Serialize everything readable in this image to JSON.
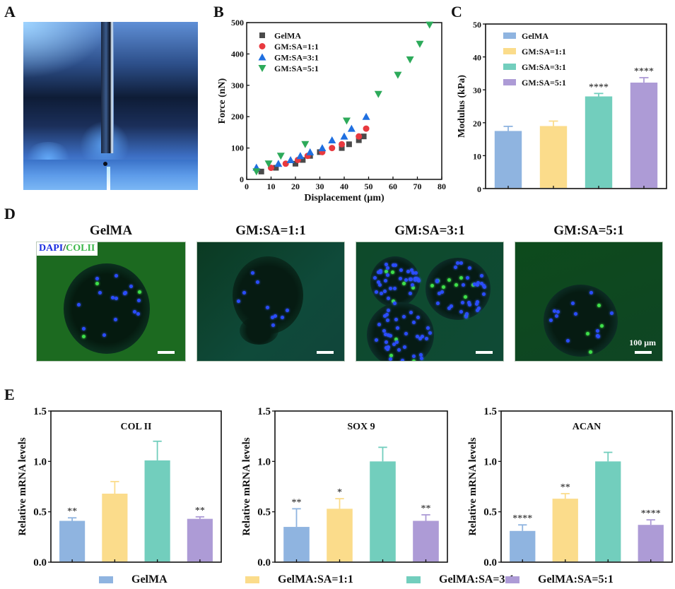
{
  "panels": {
    "A": {
      "letter": "A"
    },
    "B": {
      "letter": "B"
    },
    "C": {
      "letter": "C"
    },
    "D": {
      "letter": "D",
      "titles": [
        "GelMA",
        "GM:SA=1:1",
        "GM:SA=3:1",
        "GM:SA=5:1"
      ],
      "stain_label_blue": "DAPI",
      "stain_label_sep": "/",
      "stain_label_green": "COLII",
      "scale_bar_label": "100 μm"
    },
    "E": {
      "letter": "E"
    }
  },
  "colors": {
    "gelma": "#8fb4e0",
    "ratio_1_1": "#fbdc8b",
    "ratio_3_1": "#72cebd",
    "ratio_5_1": "#ad9bd6",
    "scatter_gelma": "#4a4a4a",
    "scatter_1_1": "#e8393f",
    "scatter_3_1": "#1f6fe0",
    "scatter_5_1": "#2daa5a"
  },
  "legend_E": [
    "GelMA",
    "GelMA:SA=1:1",
    "GelMA:SA=3:1",
    "GelMA:SA=5:1"
  ],
  "chart_data": [
    {
      "id": "B",
      "type": "scatter",
      "title": "",
      "xlabel": "Displacement (μm)",
      "ylabel": "Force (nN)",
      "xlim": [
        0,
        80
      ],
      "ylim": [
        0,
        500
      ],
      "xticks": [
        0,
        10,
        20,
        30,
        40,
        50,
        60,
        70,
        80
      ],
      "yticks": [
        0,
        100,
        200,
        300,
        400,
        500
      ],
      "legend_position": "top-left",
      "series": [
        {
          "name": "GelMA",
          "marker": "square",
          "x": [
            6,
            12,
            20,
            23,
            26,
            30,
            39,
            42,
            46,
            48
          ],
          "y": [
            25,
            37,
            50,
            62,
            75,
            87,
            100,
            112,
            125,
            137
          ]
        },
        {
          "name": "GM:SA=1:1",
          "marker": "circle",
          "x": [
            10,
            16,
            21,
            25,
            31,
            35,
            39,
            46,
            49
          ],
          "y": [
            37,
            50,
            62,
            75,
            87,
            100,
            112,
            137,
            162
          ]
        },
        {
          "name": "GM:SA=3:1",
          "marker": "triangle-up",
          "x": [
            4,
            13,
            18,
            22,
            26,
            31,
            35,
            40,
            43,
            49
          ],
          "y": [
            38,
            50,
            62,
            75,
            87,
            100,
            125,
            137,
            162,
            200
          ]
        },
        {
          "name": "GM:SA=5:1",
          "marker": "triangle-down",
          "x": [
            4,
            9,
            14,
            24,
            41,
            54,
            62,
            67,
            71,
            75
          ],
          "y": [
            25,
            50,
            75,
            112,
            187,
            272,
            333,
            382,
            432,
            493
          ]
        }
      ]
    },
    {
      "id": "C",
      "type": "bar",
      "title": "",
      "xlabel": "",
      "ylabel": "Modulus (kPa)",
      "ylim": [
        0,
        50
      ],
      "yticks": [
        0,
        10,
        20,
        30,
        40,
        50
      ],
      "legend_position": "top-left",
      "categories": [
        "GelMA",
        "GM:SA=1:1",
        "GM:SA=3:1",
        "GM:SA=5:1"
      ],
      "values": [
        17.5,
        19.0,
        28.0,
        32.2
      ],
      "errors": [
        1.4,
        1.5,
        0.9,
        1.5
      ],
      "significance": [
        "",
        "",
        "****",
        "****"
      ]
    },
    {
      "id": "E1",
      "type": "bar",
      "title": "COL II",
      "ylabel": "Relative mRNA levels",
      "ylim": [
        0,
        1.5
      ],
      "yticks": [
        "0.0",
        "0.5",
        "1.0",
        "1.5"
      ],
      "categories": [
        "GelMA",
        "GelMA:SA=1:1",
        "GelMA:SA=3:1",
        "GelMA:SA=5:1"
      ],
      "values": [
        0.41,
        0.68,
        1.01,
        0.43
      ],
      "errors": [
        0.03,
        0.12,
        0.19,
        0.02
      ],
      "significance": [
        "**",
        "",
        "",
        "**"
      ]
    },
    {
      "id": "E2",
      "type": "bar",
      "title": "SOX 9",
      "ylabel": "Relative mRNA levels",
      "ylim": [
        0,
        1.5
      ],
      "yticks": [
        "0.0",
        "0.5",
        "1.0",
        "1.5"
      ],
      "categories": [
        "GelMA",
        "GelMA:SA=1:1",
        "GelMA:SA=3:1",
        "GelMA:SA=5:1"
      ],
      "values": [
        0.35,
        0.53,
        1.0,
        0.41
      ],
      "errors": [
        0.18,
        0.1,
        0.14,
        0.06
      ],
      "significance": [
        "**",
        "*",
        "",
        "**"
      ]
    },
    {
      "id": "E3",
      "type": "bar",
      "title": "ACAN",
      "ylabel": "Relative mRNA levels",
      "ylim": [
        0,
        1.5
      ],
      "yticks": [
        "0.0",
        "0.5",
        "1.0",
        "1.5"
      ],
      "categories": [
        "GelMA",
        "GelMA:SA=1:1",
        "GelMA:SA=3:1",
        "GelMA:SA=5:1"
      ],
      "values": [
        0.31,
        0.63,
        1.0,
        0.37
      ],
      "errors": [
        0.06,
        0.05,
        0.09,
        0.05
      ],
      "significance": [
        "****",
        "**",
        "",
        "****"
      ]
    }
  ]
}
